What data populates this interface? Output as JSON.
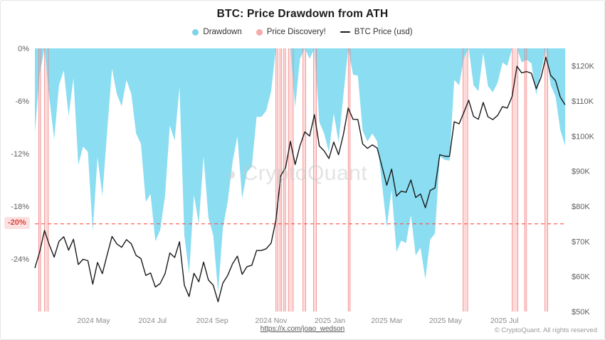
{
  "header": {
    "title": "BTC: Price Drawdown from ATH"
  },
  "watermark": {
    "text": "CryptoQuant"
  },
  "footer": {
    "link": "https://x.com/joao_wedson",
    "copyright": "© CryptoQuant. All rights reserved"
  },
  "chart_data": {
    "type": "mixed",
    "title": "BTC: Price Drawdown from ATH",
    "legend": [
      {
        "label": "Drawdown",
        "marker": "dot",
        "color": "#7ED3EA"
      },
      {
        "label": "Price Discovery!",
        "marker": "dot",
        "color": "#F6A9A9"
      },
      {
        "label": "BTC Price (usd)",
        "marker": "line",
        "color": "#1A1A1A"
      }
    ],
    "axes": {
      "left": {
        "ticks": [
          "0%",
          "-6%",
          "-12%",
          "-18%",
          "-24%"
        ],
        "tick_values": [
          0,
          -6,
          -12,
          -18,
          -24
        ],
        "range": [
          0,
          -30
        ]
      },
      "right": {
        "ticks": [
          "$120K",
          "$110K",
          "$100K",
          "$90K",
          "$80K",
          "$70K",
          "$60K",
          "$50K"
        ],
        "tick_values": [
          120,
          110,
          100,
          90,
          80,
          70,
          60,
          50
        ],
        "range": [
          125,
          50
        ]
      },
      "x": {
        "ticks": [
          "2024 May",
          "2024 Jul",
          "2024 Sep",
          "2024 Nov",
          "2025 Jan",
          "2025 Mar",
          "2025 May",
          "2025 Jul"
        ],
        "tick_dates": [
          "2024-05-01",
          "2024-07-01",
          "2024-09-01",
          "2024-11-01",
          "2025-01-01",
          "2025-03-01",
          "2025-05-01",
          "2025-07-01"
        ]
      }
    },
    "x_start": "2024-03-01",
    "x_step_days": 5,
    "x_end": "2025-09-02",
    "series": [
      {
        "name": "Drawdown",
        "type": "area",
        "axis": "left",
        "color": "#7ED9F0",
        "values": [
          -9.6,
          -2.9,
          0,
          -5.6,
          -10.4,
          -4.2,
          -2.5,
          -7.7,
          -3.4,
          -13.3,
          -11.2,
          -11.8,
          -20.9,
          -12.4,
          -16.8,
          -9.4,
          -2.3,
          -5.2,
          -6.6,
          -3.6,
          -5.2,
          -9.7,
          -10.9,
          -17.5,
          -16.6,
          -22.0,
          -20.7,
          -16.8,
          -8.8,
          -10.5,
          -4.4,
          -21.3,
          -25.7,
          -16.7,
          -20.0,
          -12.3,
          -19.3,
          -21.3,
          -27.8,
          -20.5,
          -17.5,
          -13.0,
          -10.0,
          -17.1,
          -14.1,
          -13.5,
          -7.8,
          -7.8,
          -7.1,
          -4.9,
          0,
          0,
          0,
          0,
          -6.7,
          -1.2,
          0,
          -1.2,
          0,
          -8.4,
          -9.7,
          -11.8,
          -7.4,
          -10.7,
          -5.3,
          0,
          -3.0,
          -3.1,
          -9.4,
          -10.6,
          -9.7,
          -10.6,
          -15.4,
          -20.4,
          -16.1,
          -23.2,
          -21.9,
          -22.2,
          -19.0,
          -23.6,
          -22.7,
          -26.3,
          -21.8,
          -21.1,
          -12.3,
          -12.7,
          -12.8,
          -3.6,
          -4.2,
          -1.1,
          0,
          -4.2,
          -4.9,
          -0.5,
          -4.3,
          -5.0,
          -3.9,
          -1.6,
          -2.0,
          0,
          0,
          -1.6,
          -1.3,
          -1.7,
          -5.3,
          -2.7,
          0,
          -4.2,
          -5.5,
          -9.3,
          -11.1
        ]
      },
      {
        "name": "BTC Price (usd)",
        "type": "line",
        "axis": "right",
        "color": "#1A1A1A",
        "values": [
          62.4,
          67.0,
          73.1,
          69.0,
          65.5,
          70.0,
          71.3,
          67.5,
          70.6,
          63.4,
          64.9,
          64.5,
          57.8,
          64.0,
          60.8,
          66.2,
          71.4,
          69.3,
          68.3,
          70.5,
          69.3,
          66.0,
          65.1,
          60.3,
          61.0,
          57.0,
          58.0,
          60.8,
          66.7,
          65.4,
          69.9,
          57.5,
          54.3,
          60.9,
          58.5,
          64.1,
          59.0,
          57.5,
          52.8,
          58.1,
          60.3,
          63.6,
          65.8,
          60.6,
          62.8,
          63.2,
          67.4,
          67.4,
          67.9,
          69.5,
          76.0,
          88.7,
          91.0,
          98.5,
          91.9,
          97.3,
          101.2,
          100.0,
          106.1,
          97.2,
          95.8,
          93.6,
          98.3,
          94.7,
          100.5,
          108.0,
          104.8,
          104.7,
          97.8,
          96.5,
          97.5,
          96.6,
          91.4,
          86.0,
          90.6,
          82.9,
          84.3,
          84.0,
          87.5,
          82.5,
          83.5,
          79.6,
          84.5,
          85.2,
          94.7,
          94.3,
          94.2,
          104.1,
          103.5,
          106.8,
          110.2,
          105.6,
          104.8,
          109.6,
          105.5,
          104.7,
          105.9,
          108.4,
          108.0,
          111.3,
          119.9,
          118.0,
          118.4,
          117.9,
          113.5,
          116.7,
          122.5,
          117.3,
          115.8,
          111.1,
          108.9
        ]
      }
    ],
    "price_discovery_bands": [
      [
        "2024-03-05",
        "2024-03-07"
      ],
      [
        "2024-03-11",
        "2024-03-15"
      ],
      [
        "2024-11-06",
        "2024-11-08"
      ],
      [
        "2024-11-10",
        "2024-11-12"
      ],
      [
        "2024-11-14",
        "2024-11-16"
      ],
      [
        "2024-11-19",
        "2024-11-24"
      ],
      [
        "2024-12-04",
        "2024-12-07"
      ],
      [
        "2024-12-15",
        "2024-12-18"
      ],
      [
        "2025-01-20",
        "2025-01-22"
      ],
      [
        "2025-05-19",
        "2025-05-24"
      ],
      [
        "2025-07-09",
        "2025-07-15"
      ],
      [
        "2025-07-22",
        "2025-07-24"
      ],
      [
        "2025-08-12",
        "2025-08-15"
      ]
    ],
    "reference_line": {
      "axis": "left",
      "value": -20,
      "label": "-20%",
      "style": "dashed",
      "color": "#FF5148"
    },
    "colors": {
      "band_fill": "rgba(249,166,166,0.40)",
      "band_edge": "rgba(240,120,120,0.85)",
      "background": "#FFFFFF"
    }
  }
}
